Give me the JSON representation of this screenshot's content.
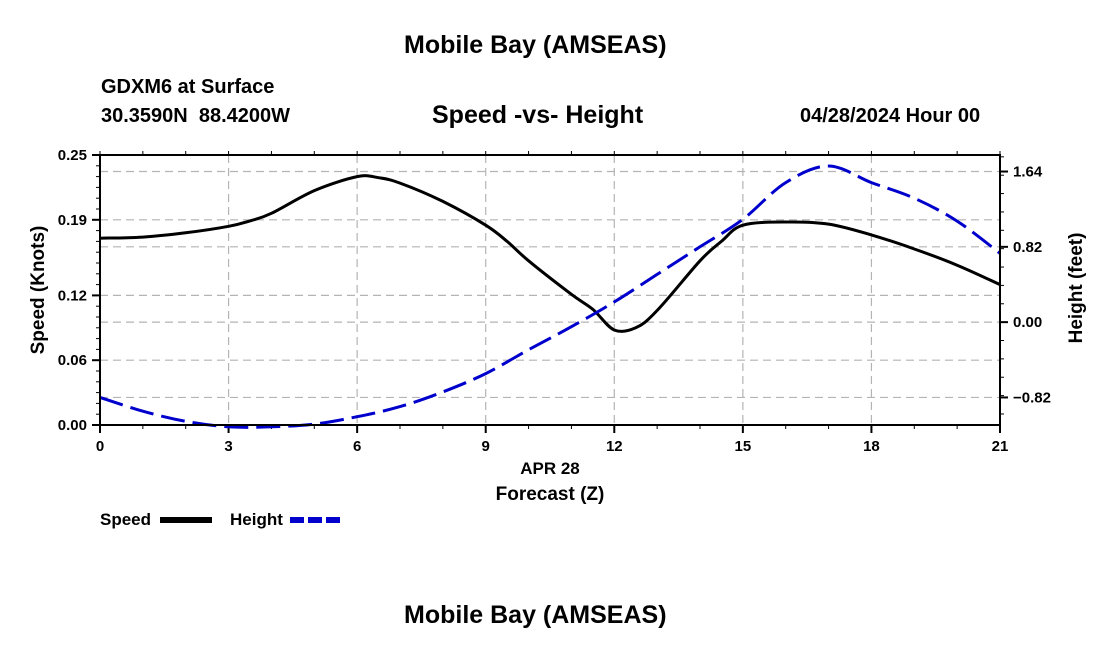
{
  "header": {
    "title": "Mobile Bay (AMSEAS)",
    "station": "GDXM6 at Surface",
    "coords": "30.3590N  88.4200W",
    "chart_title": "Speed -vs- Height",
    "datetime": "04/28/2024 Hour 00"
  },
  "footer": {
    "title": "Mobile Bay (AMSEAS)"
  },
  "legend": {
    "speed_label": "Speed",
    "height_label": "Height"
  },
  "colors": {
    "speed": "#000000",
    "height": "#0000cc",
    "grid": "#b4b4b4"
  },
  "chart_data": {
    "type": "line",
    "title": "Speed -vs- Height",
    "xlabel": "Forecast (Z)",
    "xlabel_date": "APR 28",
    "xlim": [
      0,
      21
    ],
    "xticks": [
      "0",
      "3",
      "6",
      "9",
      "12",
      "15",
      "18",
      "21"
    ],
    "ylabel_left": "Speed (Knots)",
    "ylim_left": [
      0,
      0.25
    ],
    "yticks_left": [
      "0.00",
      "0.06",
      "0.12",
      "0.19",
      "0.25"
    ],
    "ylabel_right": "Height (feet)",
    "ylim_right": [
      -1.12,
      1.82
    ],
    "yticks_right": [
      "−0.82",
      "0.00",
      "0.82",
      "1.64"
    ],
    "grid": true,
    "legend_position": "bottom-left",
    "series": [
      {
        "name": "Speed",
        "axis": "left",
        "style": "solid",
        "x": [
          0,
          1,
          2,
          3,
          3.5,
          4,
          5,
          6,
          6.5,
          7,
          8,
          9,
          9.5,
          10,
          11,
          11.5,
          12,
          12.5,
          13,
          14,
          14.5,
          15,
          16,
          17,
          18,
          19,
          20,
          21
        ],
        "values": [
          0.173,
          0.174,
          0.178,
          0.184,
          0.189,
          0.196,
          0.217,
          0.23,
          0.229,
          0.224,
          0.207,
          0.185,
          0.17,
          0.152,
          0.121,
          0.107,
          0.088,
          0.09,
          0.106,
          0.152,
          0.17,
          0.185,
          0.188,
          0.186,
          0.176,
          0.163,
          0.148,
          0.13
        ]
      },
      {
        "name": "Height",
        "axis": "right",
        "style": "dashed",
        "x": [
          0,
          1,
          2,
          3,
          4,
          5,
          6,
          7,
          8,
          9,
          10,
          11,
          12,
          13,
          14,
          15,
          16,
          17,
          18,
          19,
          20,
          21
        ],
        "values": [
          -0.82,
          -0.97,
          -1.08,
          -1.14,
          -1.14,
          -1.11,
          -1.03,
          -0.92,
          -0.76,
          -0.56,
          -0.3,
          -0.05,
          0.22,
          0.52,
          0.82,
          1.12,
          1.52,
          1.7,
          1.52,
          1.35,
          1.1,
          0.75
        ]
      }
    ]
  }
}
